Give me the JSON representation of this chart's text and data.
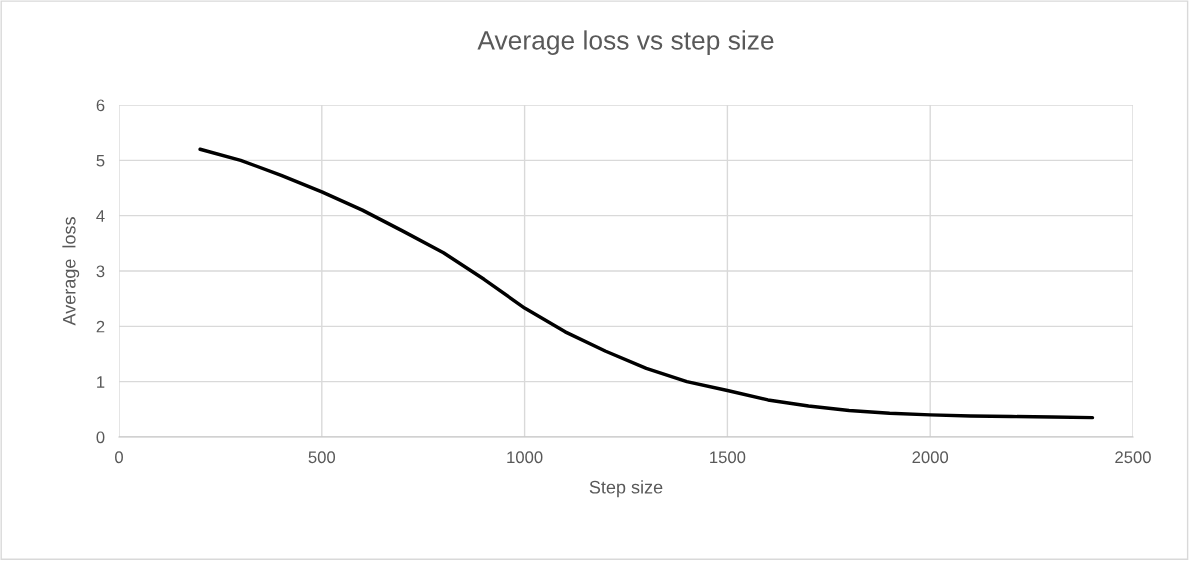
{
  "chart_data": {
    "type": "line",
    "title": "Average loss vs step size",
    "xlabel": "Step size",
    "ylabel": "Average  loss",
    "x": [
      200,
      300,
      400,
      500,
      600,
      700,
      800,
      900,
      1000,
      1100,
      1200,
      1300,
      1400,
      1500,
      1600,
      1700,
      1800,
      1900,
      2000,
      2100,
      2200,
      2300,
      2400
    ],
    "series": [
      {
        "color": "#000000",
        "values": [
          5.2,
          5.0,
          4.73,
          4.43,
          4.1,
          3.72,
          3.33,
          2.85,
          2.33,
          1.9,
          1.55,
          1.24,
          1.0,
          0.84,
          0.67,
          0.56,
          0.48,
          0.43,
          0.4,
          0.38,
          0.37,
          0.36,
          0.35
        ]
      }
    ],
    "xlim": [
      0,
      2500
    ],
    "xticks": [
      0,
      500,
      1000,
      1500,
      2000,
      2500
    ],
    "ylim": [
      0,
      6
    ],
    "yticks": [
      0,
      1,
      2,
      3,
      4,
      5,
      6
    ],
    "grid": true,
    "marker": "none",
    "line_style": "solid",
    "legend": false
  }
}
